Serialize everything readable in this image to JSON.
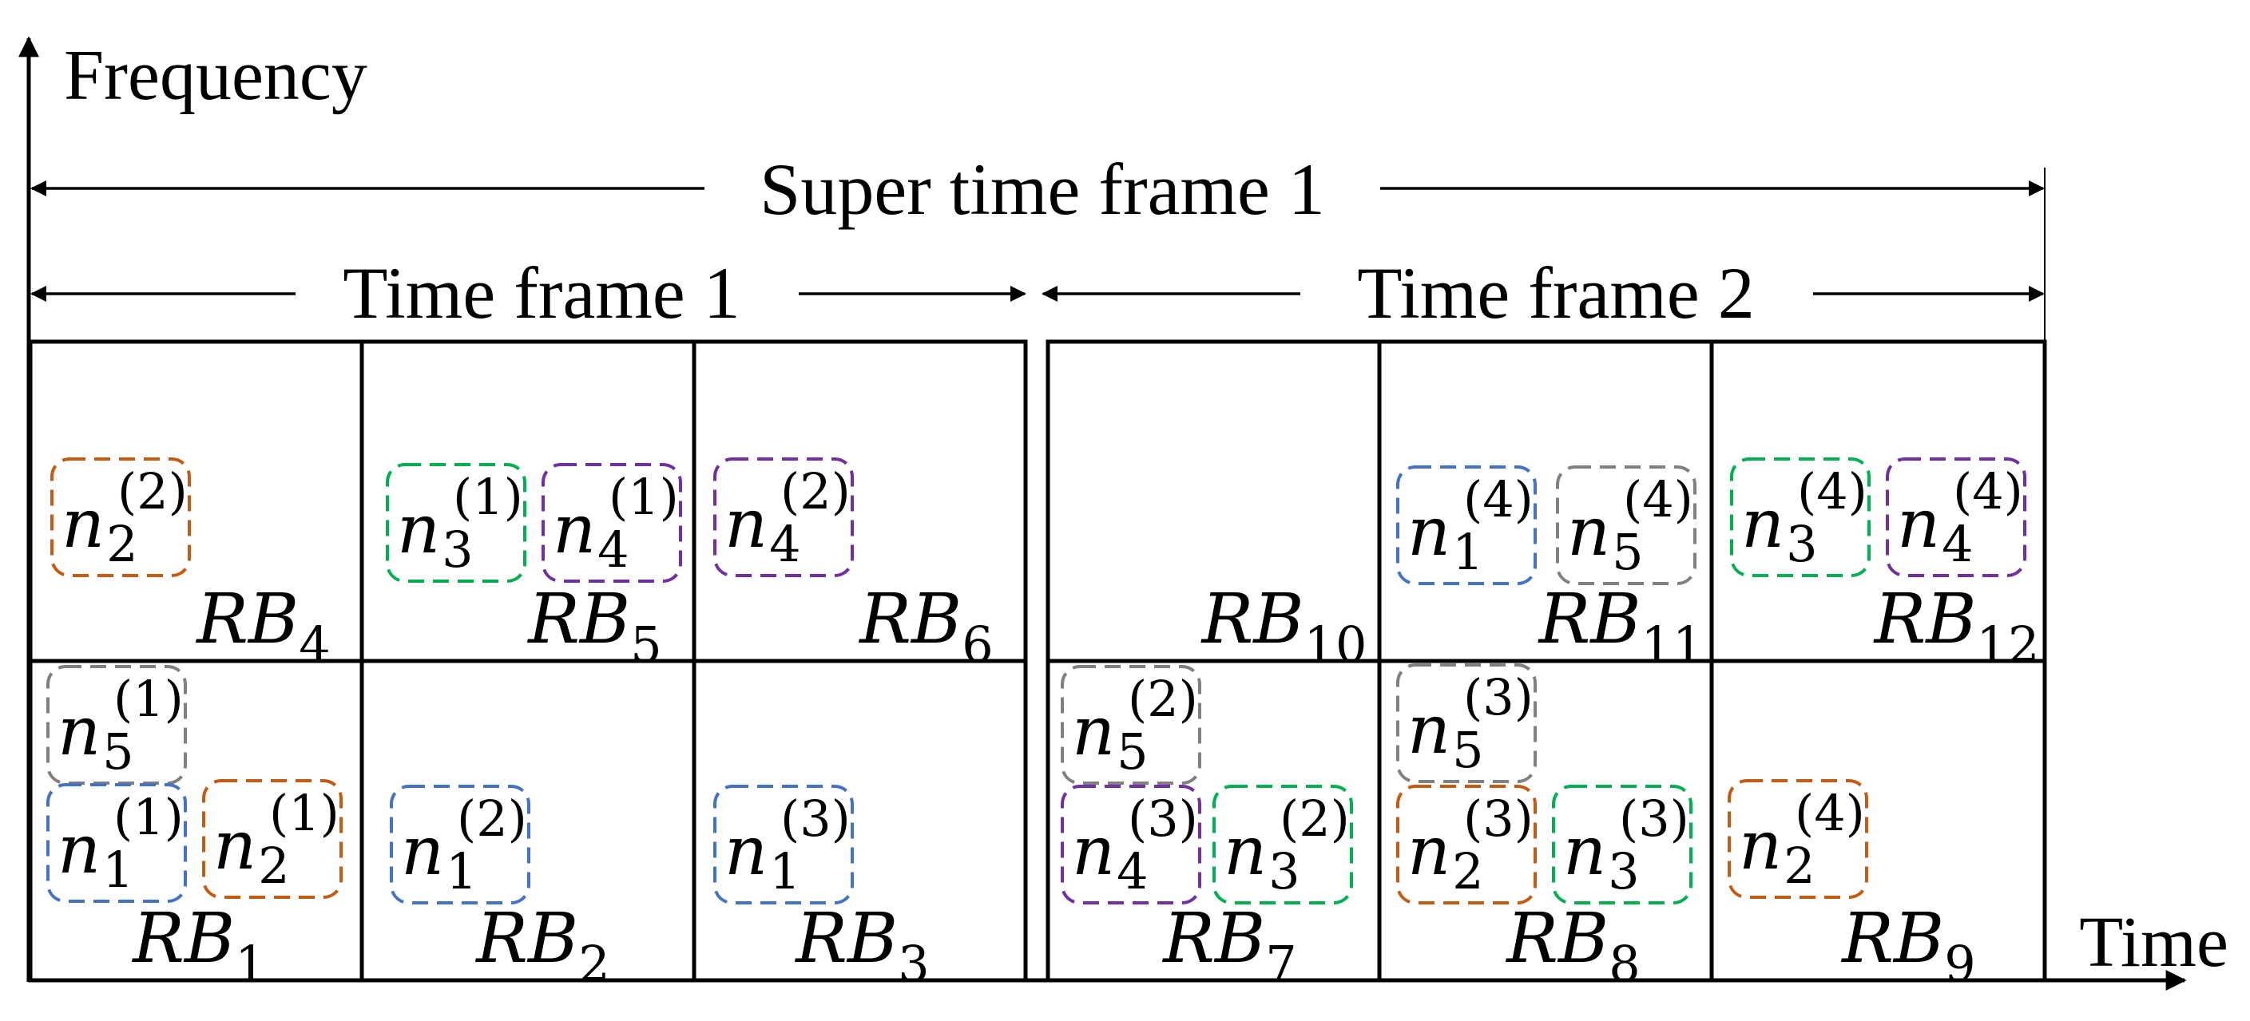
{
  "axes": {
    "y_label": "Frequency",
    "x_label": "Time"
  },
  "frames": {
    "super": "Super time frame 1",
    "tf1": "Time frame 1",
    "tf2": "Time frame 2"
  },
  "colors": {
    "1": "#4472C4",
    "2": "#C55A11",
    "3": "#00B050",
    "4": "#7030A0",
    "5": "#808080"
  },
  "resource_blocks": [
    {
      "id": "RB4",
      "label": "RB",
      "sub": "4",
      "nodes": [
        {
          "n": "2",
          "k": "2"
        }
      ]
    },
    {
      "id": "RB5",
      "label": "RB",
      "sub": "5",
      "nodes": [
        {
          "n": "3",
          "k": "1"
        },
        {
          "n": "4",
          "k": "1"
        }
      ]
    },
    {
      "id": "RB6",
      "label": "RB",
      "sub": "6",
      "nodes": [
        {
          "n": "4",
          "k": "2"
        }
      ]
    },
    {
      "id": "RB10",
      "label": "RB",
      "sub": "10",
      "nodes": []
    },
    {
      "id": "RB11",
      "label": "RB",
      "sub": "11",
      "nodes": [
        {
          "n": "1",
          "k": "4"
        },
        {
          "n": "5",
          "k": "4"
        }
      ]
    },
    {
      "id": "RB12",
      "label": "RB",
      "sub": "12",
      "nodes": [
        {
          "n": "3",
          "k": "4"
        },
        {
          "n": "4",
          "k": "4"
        }
      ]
    },
    {
      "id": "RB1",
      "label": "RB",
      "sub": "1",
      "nodes": [
        {
          "n": "5",
          "k": "1"
        },
        {
          "n": "1",
          "k": "1"
        },
        {
          "n": "2",
          "k": "1"
        }
      ]
    },
    {
      "id": "RB2",
      "label": "RB",
      "sub": "2",
      "nodes": [
        {
          "n": "1",
          "k": "2"
        }
      ]
    },
    {
      "id": "RB3",
      "label": "RB",
      "sub": "3",
      "nodes": [
        {
          "n": "1",
          "k": "3"
        }
      ]
    },
    {
      "id": "RB7",
      "label": "RB",
      "sub": "7",
      "nodes": [
        {
          "n": "5",
          "k": "2"
        },
        {
          "n": "4",
          "k": "3"
        },
        {
          "n": "3",
          "k": "2"
        }
      ]
    },
    {
      "id": "RB8",
      "label": "RB",
      "sub": "8",
      "nodes": [
        {
          "n": "5",
          "k": "3"
        },
        {
          "n": "2",
          "k": "3"
        },
        {
          "n": "3",
          "k": "3"
        }
      ]
    },
    {
      "id": "RB9",
      "label": "RB",
      "sub": "9",
      "nodes": [
        {
          "n": "2",
          "k": "4"
        }
      ]
    }
  ]
}
